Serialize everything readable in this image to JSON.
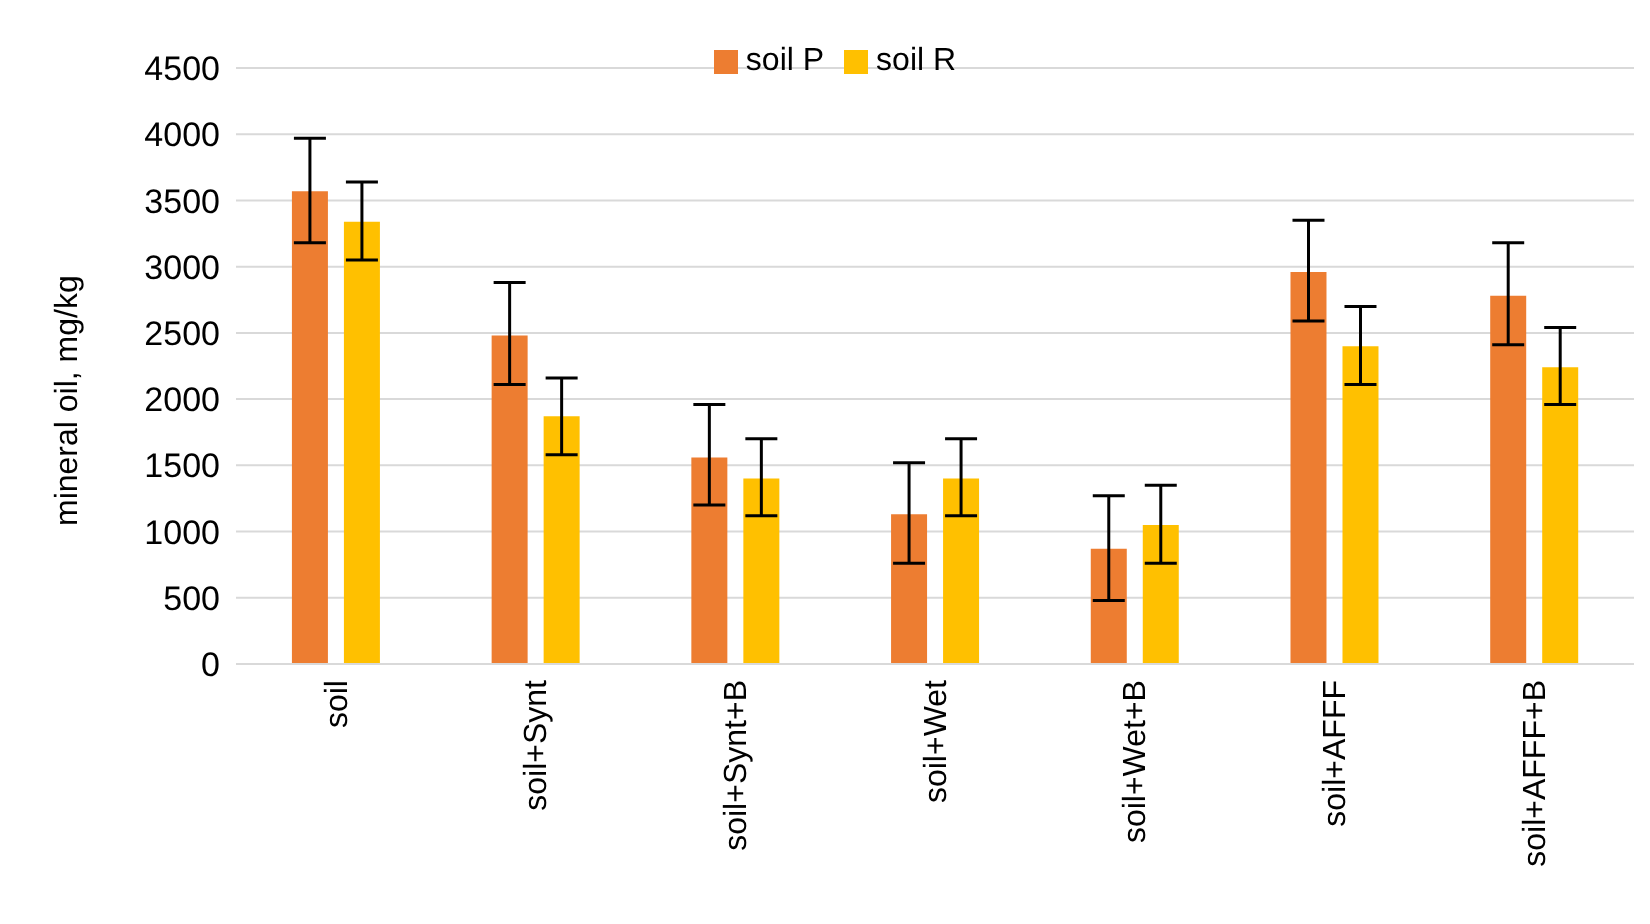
{
  "chart_data": {
    "type": "bar",
    "ylabel": "mineral oil, mg/kg",
    "categories": [
      "soil",
      "soil+Synt",
      "soil+Synt+B",
      "soil+Wet",
      "soil+Wet+B",
      "soil+AFFF",
      "soil+AFFF+B"
    ],
    "series": [
      {
        "name": "soil P",
        "color": "#ed7d31",
        "values": [
          3570,
          2480,
          1560,
          1130,
          870,
          2960,
          2780
        ],
        "errors": [
          [
            3180,
            3970
          ],
          [
            2110,
            2880
          ],
          [
            1200,
            1960
          ],
          [
            760,
            1520
          ],
          [
            480,
            1270
          ],
          [
            2590,
            3350
          ],
          [
            2410,
            3180
          ]
        ]
      },
      {
        "name": "soil R",
        "color": "#ffc000",
        "values": [
          3340,
          1870,
          1400,
          1400,
          1050,
          2400,
          2240
        ],
        "errors": [
          [
            3050,
            3640
          ],
          [
            1580,
            2160
          ],
          [
            1120,
            1700
          ],
          [
            1120,
            1700
          ],
          [
            760,
            1350
          ],
          [
            2110,
            2700
          ],
          [
            1960,
            2540
          ]
        ]
      }
    ],
    "ylim": [
      0,
      4500
    ],
    "yticks": [
      0,
      500,
      1000,
      1500,
      2000,
      2500,
      3000,
      3500,
      4000,
      4500
    ],
    "grid": "y",
    "legend": "top"
  }
}
